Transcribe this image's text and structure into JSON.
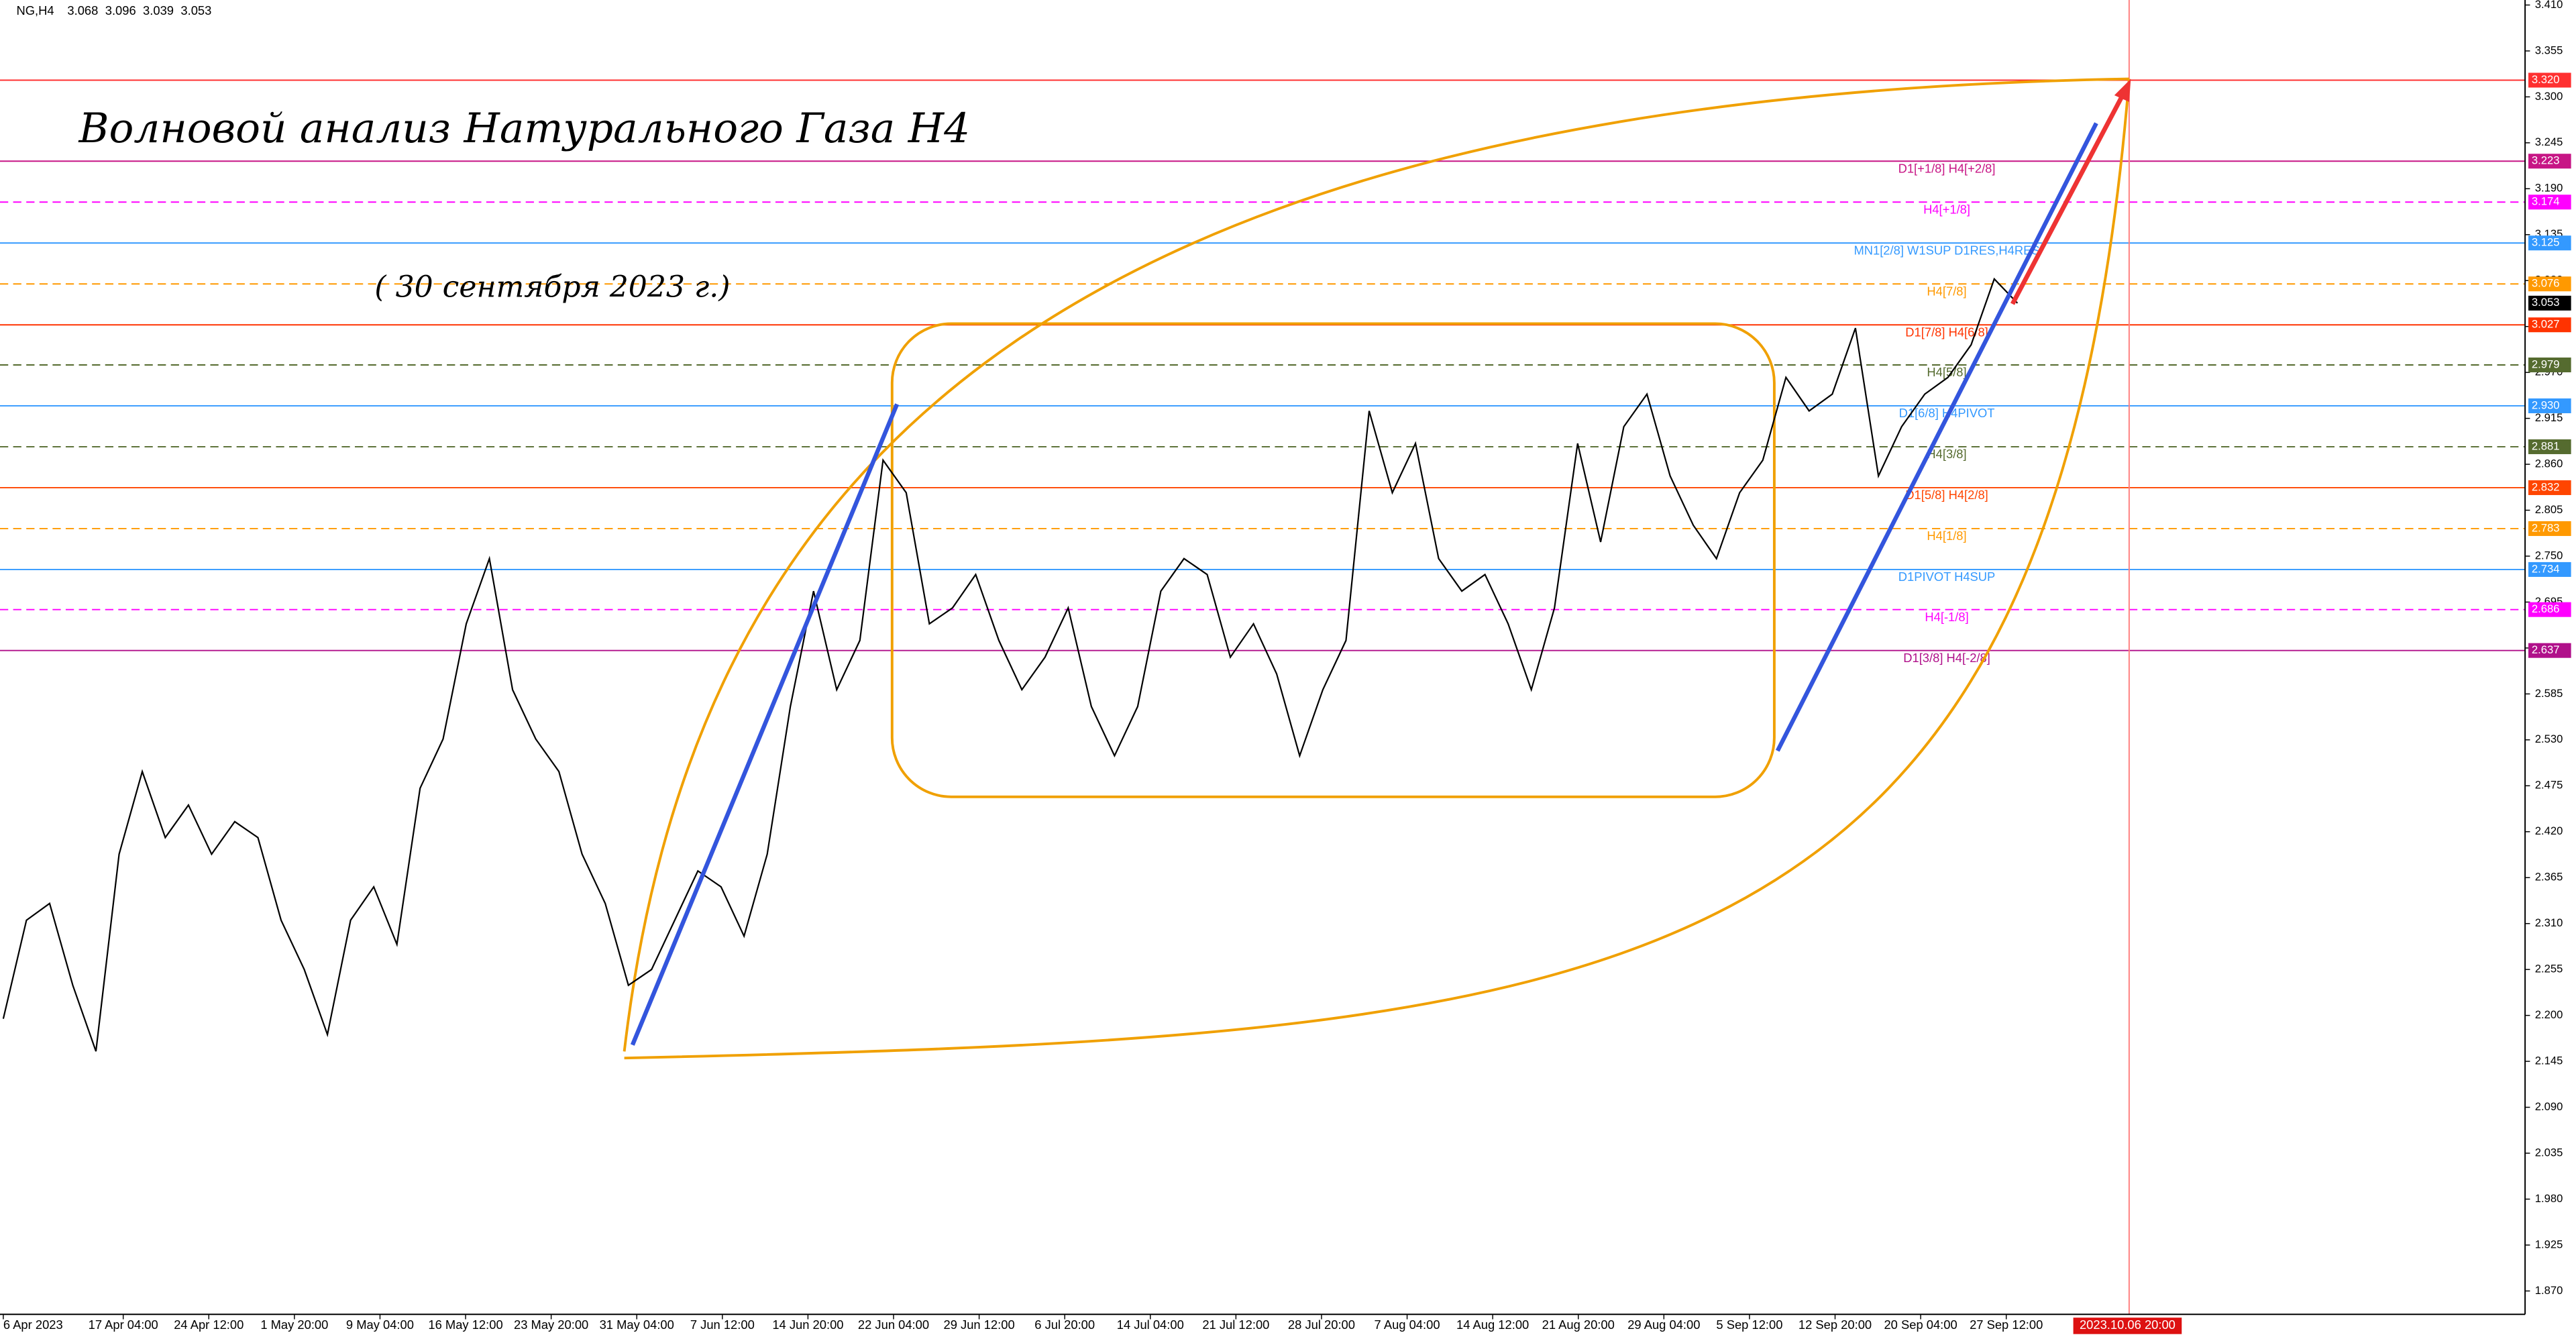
{
  "chart_data": {
    "type": "line",
    "symbol": "NG,H4",
    "ohlc": [
      3.068,
      3.096,
      3.039,
      3.053
    ],
    "title": "Волновой анализ Натурального Газа H4",
    "subtitle": "( 30 сентября 2023 г.)",
    "color": "#000000",
    "values": [
      2.196,
      2.314,
      2.334,
      2.236,
      2.157,
      2.393,
      2.492,
      2.413,
      2.452,
      2.393,
      2.432,
      2.413,
      2.314,
      2.255,
      2.177,
      2.314,
      2.354,
      2.285,
      2.472,
      2.531,
      2.669,
      2.747,
      2.59,
      2.531,
      2.492,
      2.393,
      2.334,
      2.236,
      2.255,
      2.314,
      2.373,
      2.354,
      2.295,
      2.393,
      2.57,
      2.708,
      2.59,
      2.649,
      2.865,
      2.826,
      2.669,
      2.688,
      2.728,
      2.649,
      2.59,
      2.629,
      2.688,
      2.57,
      2.511,
      2.57,
      2.708,
      2.747,
      2.728,
      2.629,
      2.669,
      2.609,
      2.511,
      2.59,
      2.649,
      2.924,
      2.826,
      2.885,
      2.747,
      2.708,
      2.728,
      2.669,
      2.59,
      2.688,
      2.885,
      2.767,
      2.905,
      2.944,
      2.846,
      2.787,
      2.747,
      2.826,
      2.865,
      2.964,
      2.924,
      2.944,
      3.023,
      2.846,
      2.905,
      2.944,
      2.964,
      3.003,
      3.082,
      3.053
    ],
    "x_tick_labels": [
      "6 Apr 2023",
      "17 Apr 04:00",
      "24 Apr 12:00",
      "1 May 20:00",
      "9 May 04:00",
      "16 May 12:00",
      "23 May 20:00",
      "31 May 04:00",
      "7 Jun 12:00",
      "14 Jun 20:00",
      "22 Jun 04:00",
      "29 Jun 12:00",
      "6 Jul 20:00",
      "14 Jul 04:00",
      "21 Jul 12:00",
      "28 Jul 20:00",
      "7 Aug 04:00",
      "14 Aug 12:00",
      "21 Aug 20:00",
      "29 Aug 04:00",
      "5 Sep 12:00",
      "12 Sep 20:00",
      "20 Sep 04:00",
      "27 Sep 12:00"
    ],
    "marker_label": "2023.10.06 20:00",
    "ylim": [
      1.842,
      3.416
    ],
    "yticks": [
      {
        "value": 3.41,
        "label": "3.410"
      },
      3.355,
      {
        "value": 3.3,
        "label": "3.300"
      },
      3.245,
      {
        "value": 3.19,
        "label": "3.190"
      },
      3.135,
      {
        "value": 3.08,
        "label": "3.080"
      },
      3.025,
      {
        "value": 2.97,
        "label": "2.970"
      },
      2.915,
      {
        "value": 2.86,
        "label": "2.860"
      },
      2.805,
      {
        "value": 2.75,
        "label": "2.750"
      },
      2.695,
      {
        "value": 2.64,
        "label": "2.640"
      },
      2.585,
      {
        "value": 2.53,
        "label": "2.530"
      },
      2.475,
      {
        "value": 2.42,
        "label": "2.420"
      },
      2.365,
      {
        "value": 2.31,
        "label": "2.310"
      },
      2.255,
      {
        "value": 2.2,
        "label": "2.200"
      },
      2.145,
      {
        "value": 2.09,
        "label": "2.090"
      },
      2.035,
      {
        "value": 1.98,
        "label": "1.980"
      },
      1.925,
      {
        "value": 1.87,
        "label": "1.870"
      }
    ],
    "levels": [
      {
        "value": 3.32,
        "label": "3.320",
        "color": "#ff3030",
        "style": "solid"
      },
      {
        "value": 3.223,
        "label": "3.223",
        "text": "D1[+1/8] H4[+2/8]",
        "color": "#c71585",
        "style": "solid"
      },
      {
        "value": 3.174,
        "label": "3.174",
        "text": "H4[+1/8]",
        "color": "#ff00ff",
        "style": "dashed"
      },
      {
        "value": 3.125,
        "label": "3.125",
        "text": "MN1[2/8] W1SUP D1RES,H4RES",
        "color": "#3399ff",
        "style": "solid"
      },
      {
        "value": 3.076,
        "label": "3.076",
        "text": "H4[7/8]",
        "color": "#ff9900",
        "style": "dashed"
      },
      {
        "value": 3.027,
        "label": "3.027",
        "text": "D1[7/8] H4[6/8]",
        "color": "#ff3300",
        "style": "solid"
      },
      {
        "value": 2.979,
        "label": "2.979",
        "text": "H4[5/8]",
        "color": "#556b2f",
        "style": "dashed"
      },
      {
        "value": 2.93,
        "label": "2.930",
        "text": "D1[6/8] H4PIVOT",
        "color": "#3399ff",
        "style": "solid"
      },
      {
        "value": 2.881,
        "label": "2.881",
        "text": "H4[3/8]",
        "color": "#556b2f",
        "style": "dashed"
      },
      {
        "value": 2.832,
        "label": "2.832",
        "text": "D1[5/8] H4[2/8]",
        "color": "#ff4500",
        "style": "solid"
      },
      {
        "value": 2.783,
        "label": "2.783",
        "text": "H4[1/8]",
        "color": "#ff9900",
        "style": "dashed"
      },
      {
        "value": 2.734,
        "label": "2.734",
        "text": "D1PIVOT H4SUP",
        "color": "#3399ff",
        "style": "solid"
      },
      {
        "value": 2.686,
        "label": "2.686",
        "text": "H4[-1/8]",
        "color": "#ff00ff",
        "style": "dashed"
      },
      {
        "value": 2.637,
        "label": "2.637",
        "text": "D1[3/8] H4[-2/8]",
        "color": "#b0108a",
        "style": "solid"
      }
    ]
  }
}
